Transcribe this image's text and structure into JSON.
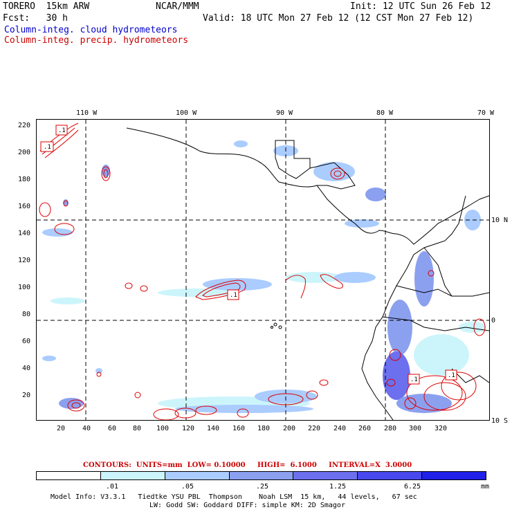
{
  "header": {
    "model": "TORERO  15km ARW",
    "org": "NCAR/MMM",
    "init": "Init: 12 UTC Sun 26 Feb 12",
    "fcst": "Fcst:   30 h",
    "valid": "Valid: 18 UTC Mon 27 Feb 12 (12 CST Mon 27 Feb 12)"
  },
  "legend": {
    "cloud": "Column-integ. cloud hydrometeors",
    "precip": "Column-integ. precip. hydrometeors"
  },
  "axes": {
    "top_lon": [
      "110 W",
      "100 W",
      "90 W",
      "80 W",
      "70 W"
    ],
    "right_lat": [
      "10 N",
      "0",
      "10 S"
    ],
    "left_y": [
      "220",
      "200",
      "180",
      "160",
      "140",
      "120",
      "100",
      "80",
      "60",
      "40",
      "20"
    ],
    "bottom_x": [
      "20",
      "40",
      "60",
      "80",
      "100",
      "120",
      "140",
      "160",
      "180",
      "200",
      "220",
      "240",
      "260",
      "280",
      "300",
      "320"
    ]
  },
  "contour_labels": [
    ".1",
    ".1",
    ".1",
    ".1",
    ".1"
  ],
  "contours_info": "CONTOURS:  UNITS=mm  LOW= 0.10000     HIGH=  6.1000     INTERVAL=X  3.0000",
  "colorbar": {
    "labels": [
      ".01",
      ".05",
      ".25",
      "1.25",
      "6.25"
    ],
    "unit": "mm",
    "colors": [
      "#ffffff",
      "#ccf5fb",
      "#aaccff",
      "#8ca0f0",
      "#6c70ee",
      "#4848ee",
      "#2020e8"
    ]
  },
  "footer": {
    "line1": "Model Info: V3.3.1   Tiedtke YSU PBL  Thompson    Noah LSM  15 km,   44 levels,   67 sec",
    "line2": "LW: Godd SW: Goddard DIFF: simple KM: 2D Smagor"
  }
}
